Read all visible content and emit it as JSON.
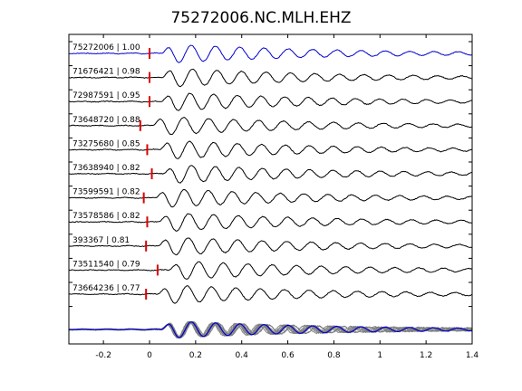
{
  "chart_data": {
    "type": "line",
    "title": "75272006.NC.MLH.EHZ",
    "xlabel": "",
    "ylabel": "",
    "xlim": [
      -0.35,
      1.4
    ],
    "xticks": [
      -0.2,
      0,
      0.2,
      0.4,
      0.6,
      0.8,
      1,
      1.2,
      1.4
    ],
    "xtick_labels": [
      "-0.2",
      "0",
      "0.2",
      "0.4",
      "0.6",
      "0.8",
      "1",
      "1.2",
      "1.4"
    ],
    "grid": false,
    "colors": {
      "reference": "#0000cc",
      "trace": "#000000",
      "pick": "#dd0000",
      "stack": "#808080"
    },
    "traces": [
      {
        "label": "75272006 | 1.00",
        "pick": 0.0,
        "reference": true
      },
      {
        "label": "71676421 | 0.98",
        "pick": 0.0,
        "reference": false
      },
      {
        "label": "72987591 | 0.95",
        "pick": 0.0,
        "reference": false
      },
      {
        "label": "73648720 | 0.88",
        "pick": -0.04,
        "reference": false
      },
      {
        "label": "73275680 | 0.85",
        "pick": -0.01,
        "reference": false
      },
      {
        "label": "73638940 | 0.82",
        "pick": 0.01,
        "reference": false
      },
      {
        "label": "73599591 | 0.82",
        "pick": -0.025,
        "reference": false
      },
      {
        "label": "73578586 | 0.82",
        "pick": -0.01,
        "reference": false
      },
      {
        "label": "393367 | 0.81",
        "pick": -0.015,
        "reference": false
      },
      {
        "label": "73511540 | 0.79",
        "pick": 0.035,
        "reference": false
      },
      {
        "label": "73664236 | 0.77",
        "pick": -0.015,
        "reference": false
      }
    ],
    "stack": {
      "label": "",
      "overlay_count": 10
    }
  }
}
